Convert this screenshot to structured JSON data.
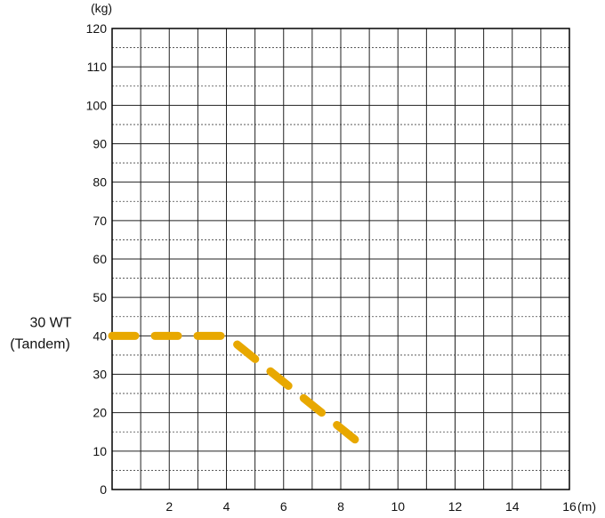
{
  "chart_data": {
    "type": "line",
    "title": "",
    "xlabel": "",
    "ylabel": "",
    "x_unit": "(m)",
    "y_unit": "(kg)",
    "xlim": [
      0,
      16
    ],
    "ylim": [
      0,
      120
    ],
    "x_ticks": [
      "2",
      "4",
      "6",
      "8",
      "10",
      "12",
      "14",
      "16"
    ],
    "y_ticks": [
      "0",
      "10",
      "20",
      "30",
      "40",
      "50",
      "60",
      "70",
      "80",
      "90",
      "100",
      "110",
      "120"
    ],
    "grid": true,
    "series": [
      {
        "name_lines": [
          "30 WT",
          "(Tandem)"
        ],
        "color": "#E8A800",
        "line_style": "dashed",
        "x": [
          0,
          4,
          9
        ],
        "y": [
          40,
          40,
          10
        ]
      }
    ]
  }
}
